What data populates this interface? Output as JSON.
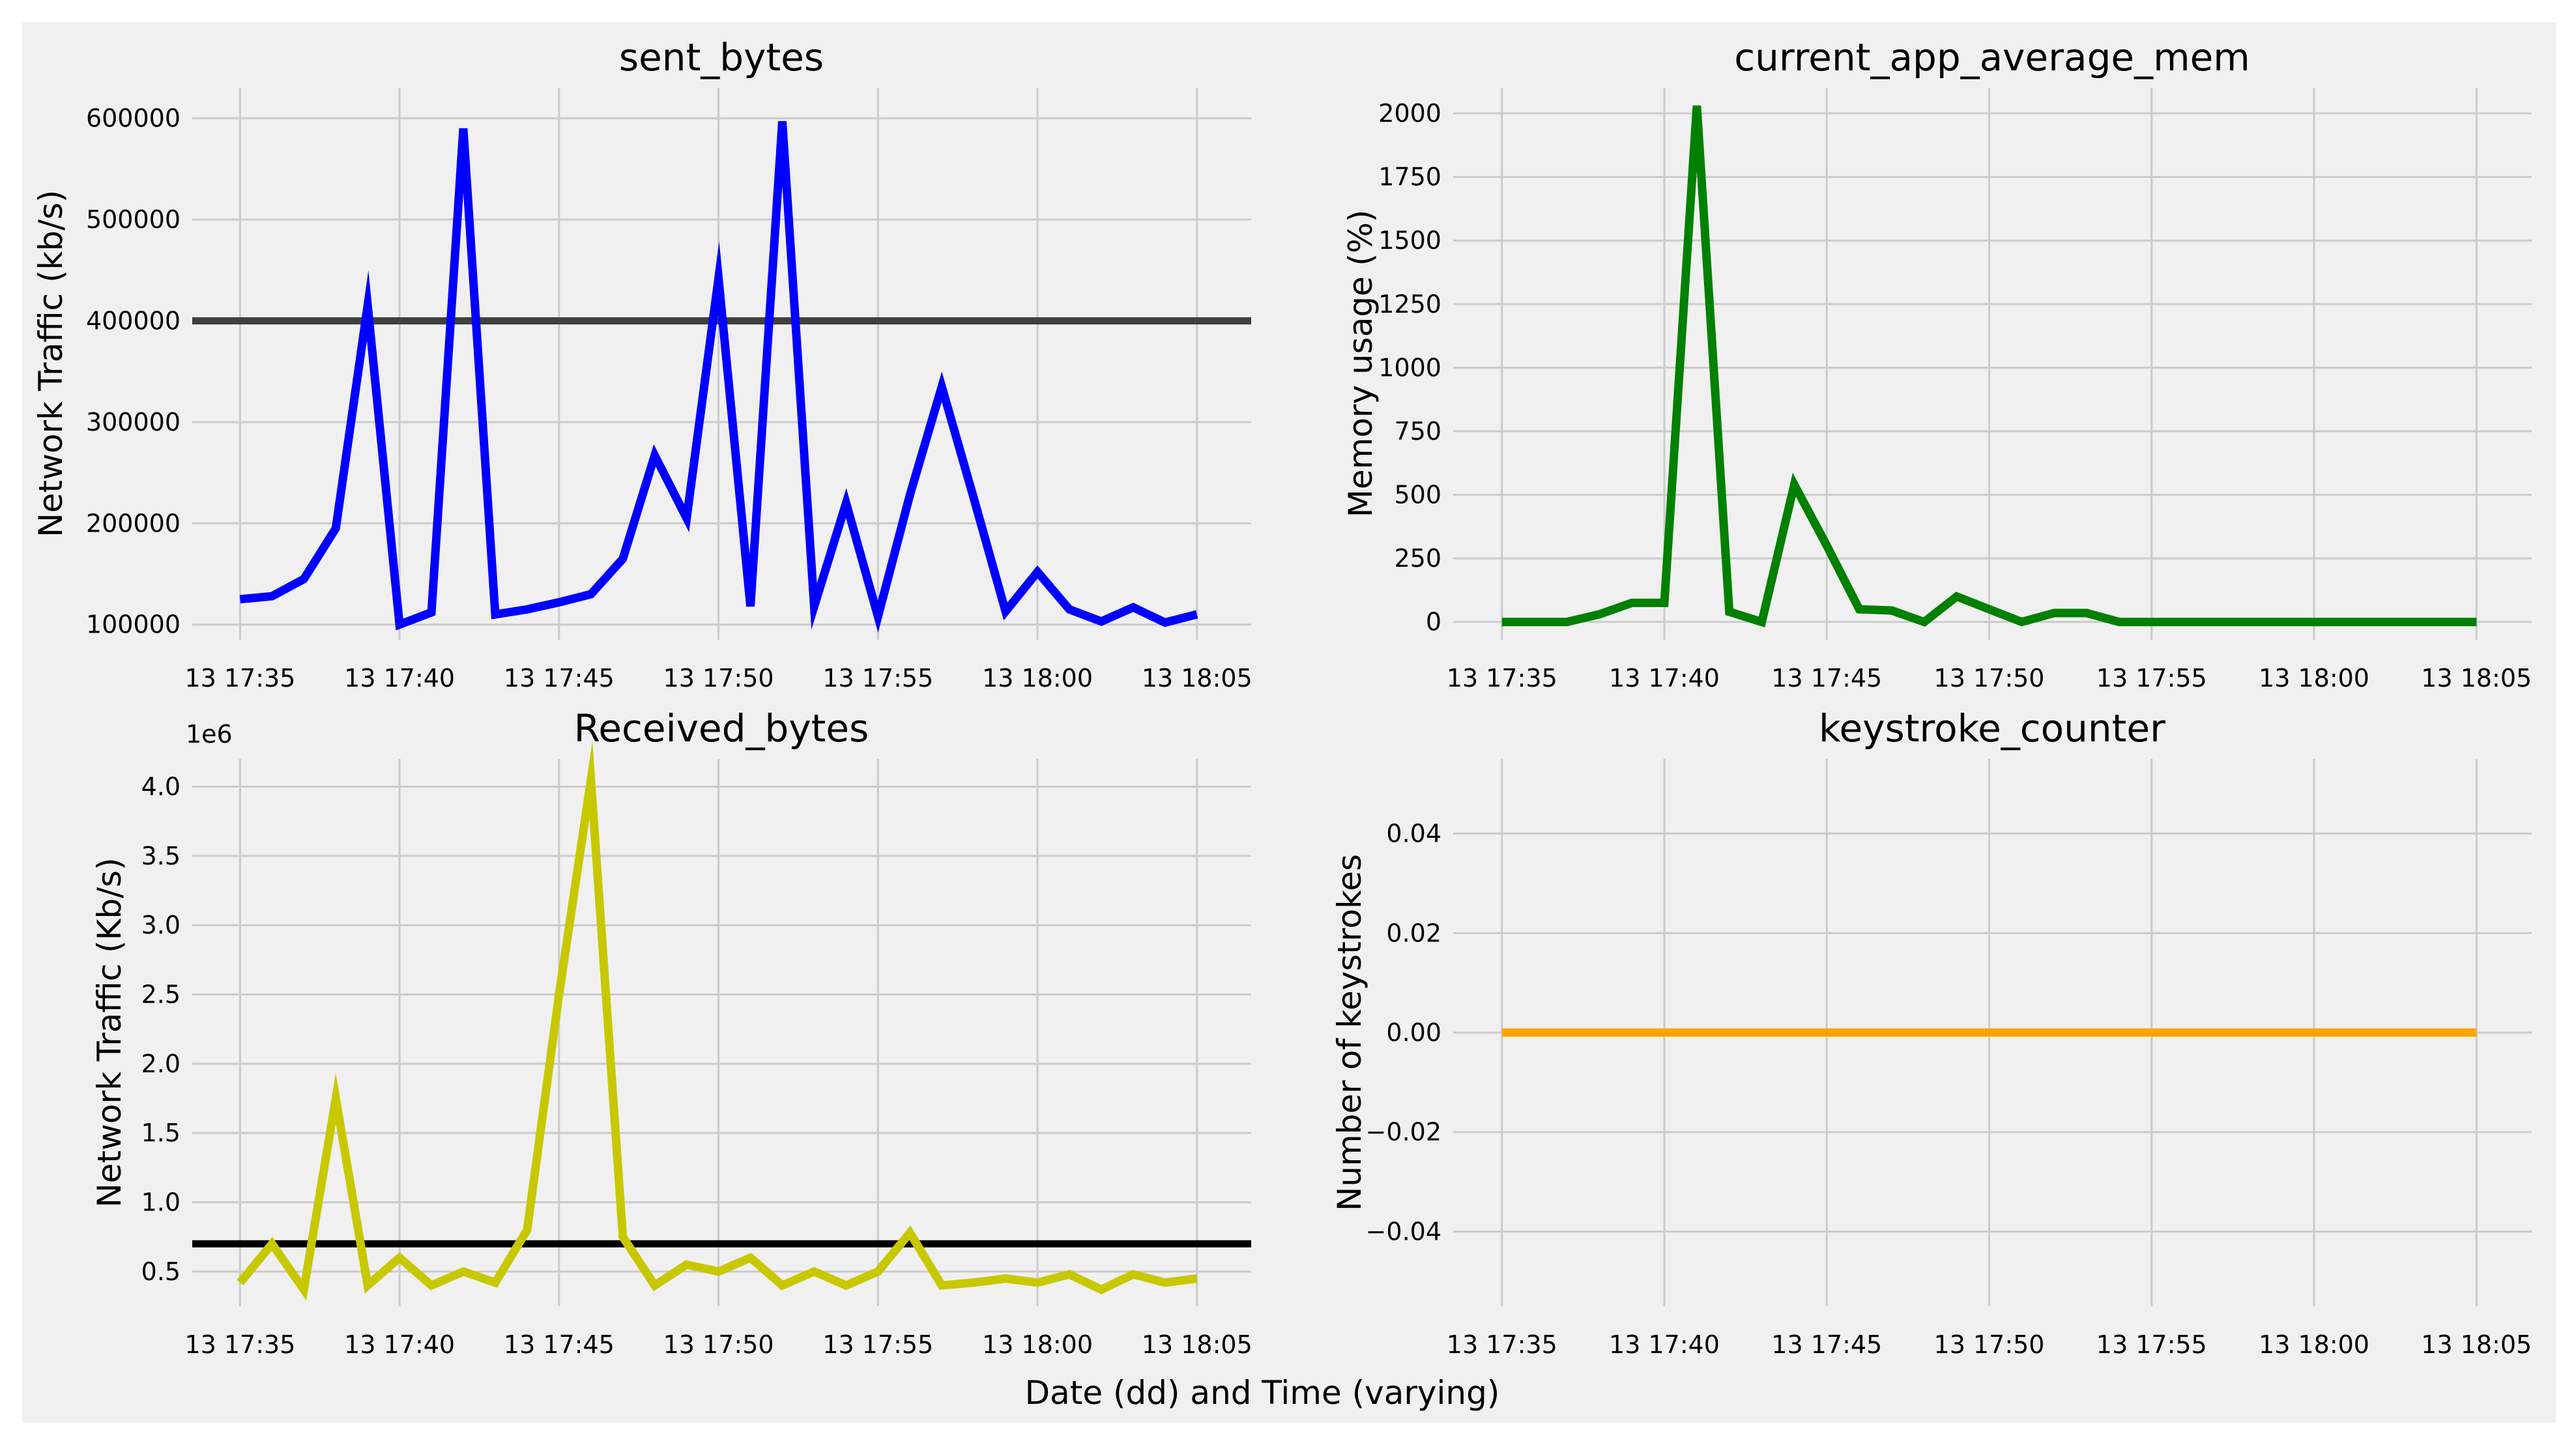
{
  "figure": {
    "xlabel": "Date (dd) and Time (varying)",
    "background": "#f0f0f0",
    "grid_color": "#cbcbcb"
  },
  "chart_data": [
    {
      "type": "line",
      "title": "sent_bytes",
      "ylabel": "Network Traffic (kb/s)",
      "color": "#0000ff",
      "x_start": "13 17:35",
      "x_step_minutes": 1,
      "x_ticks": [
        "13 17:35",
        "13 17:40",
        "13 17:45",
        "13 17:50",
        "13 17:55",
        "13 18:00",
        "13 18:05"
      ],
      "y_ticks": [
        100000,
        200000,
        300000,
        400000,
        500000,
        600000
      ],
      "y_tick_labels": [
        "100000",
        "200000",
        "300000",
        "400000",
        "500000",
        "600000"
      ],
      "ylim": [
        85000,
        630000
      ],
      "threshold": {
        "value": 400000,
        "color": "#404040",
        "label": ""
      },
      "values": [
        125000,
        128000,
        145000,
        195000,
        415000,
        100000,
        112000,
        590000,
        110000,
        115000,
        122000,
        130000,
        165000,
        267000,
        205000,
        442000,
        118000,
        597000,
        118000,
        220000,
        108000,
        228000,
        335000,
        225000,
        113000,
        152000,
        115000,
        103000,
        117000,
        102000,
        110000
      ]
    },
    {
      "type": "line",
      "title": "current_app_average_mem",
      "ylabel": "Memory usage (%)",
      "color": "#008000",
      "x_start": "13 17:35",
      "x_step_minutes": 1,
      "x_ticks": [
        "13 17:35",
        "13 17:40",
        "13 17:45",
        "13 17:50",
        "13 17:55",
        "13 18:00",
        "13 18:05"
      ],
      "y_ticks": [
        0,
        250,
        500,
        750,
        1000,
        1250,
        1500,
        1750,
        2000
      ],
      "y_tick_labels": [
        "0",
        "250",
        "500",
        "750",
        "1000",
        "1250",
        "1500",
        "1750",
        "2000"
      ],
      "ylim": [
        -70,
        2100
      ],
      "values": [
        0,
        0,
        0,
        30,
        75,
        75,
        2030,
        40,
        0,
        540,
        300,
        50,
        45,
        0,
        100,
        50,
        0,
        35,
        35,
        0,
        0,
        0,
        0,
        0,
        0,
        0,
        0,
        0,
        0,
        0,
        0
      ]
    },
    {
      "type": "line",
      "title": "Received_bytes",
      "ylabel": "Network Traffic (Kb/s)",
      "y_offset_label": "1e6",
      "color": "#c8c800",
      "x_start": "13 17:35",
      "x_step_minutes": 1,
      "x_ticks": [
        "13 17:35",
        "13 17:40",
        "13 17:45",
        "13 17:50",
        "13 17:55",
        "13 18:00",
        "13 18:05"
      ],
      "y_ticks": [
        0.5,
        1.0,
        1.5,
        2.0,
        2.5,
        3.0,
        3.5,
        4.0
      ],
      "y_tick_labels": [
        "0.5",
        "1.0",
        "1.5",
        "2.0",
        "2.5",
        "3.0",
        "3.5",
        "4.0"
      ],
      "ylim": [
        0.25,
        4.2
      ],
      "threshold": {
        "value": 0.7,
        "color": "#000000",
        "label": ""
      },
      "values": [
        0.42,
        0.7,
        0.37,
        1.75,
        0.4,
        0.6,
        0.4,
        0.5,
        0.42,
        0.8,
        2.5,
        4.05,
        0.75,
        0.4,
        0.55,
        0.5,
        0.6,
        0.4,
        0.5,
        0.4,
        0.5,
        0.78,
        0.4,
        0.42,
        0.45,
        0.42,
        0.48,
        0.37,
        0.48,
        0.42,
        0.45
      ]
    },
    {
      "type": "line",
      "title": "keystroke_counter",
      "ylabel": "Number of keystrokes",
      "color": "#ffa500",
      "x_start": "13 17:35",
      "x_step_minutes": 1,
      "x_ticks": [
        "13 17:35",
        "13 17:40",
        "13 17:45",
        "13 17:50",
        "13 17:55",
        "13 18:00",
        "13 18:05"
      ],
      "y_ticks": [
        -0.04,
        -0.02,
        0.0,
        0.02,
        0.04
      ],
      "y_tick_labels": [
        "−0.04",
        "−0.02",
        "0.00",
        "0.02",
        "0.04"
      ],
      "ylim": [
        -0.055,
        0.055
      ],
      "values": [
        0,
        0,
        0,
        0,
        0,
        0,
        0,
        0,
        0,
        0,
        0,
        0,
        0,
        0,
        0,
        0,
        0,
        0,
        0,
        0,
        0,
        0,
        0,
        0,
        0,
        0,
        0,
        0,
        0,
        0,
        0
      ]
    }
  ]
}
